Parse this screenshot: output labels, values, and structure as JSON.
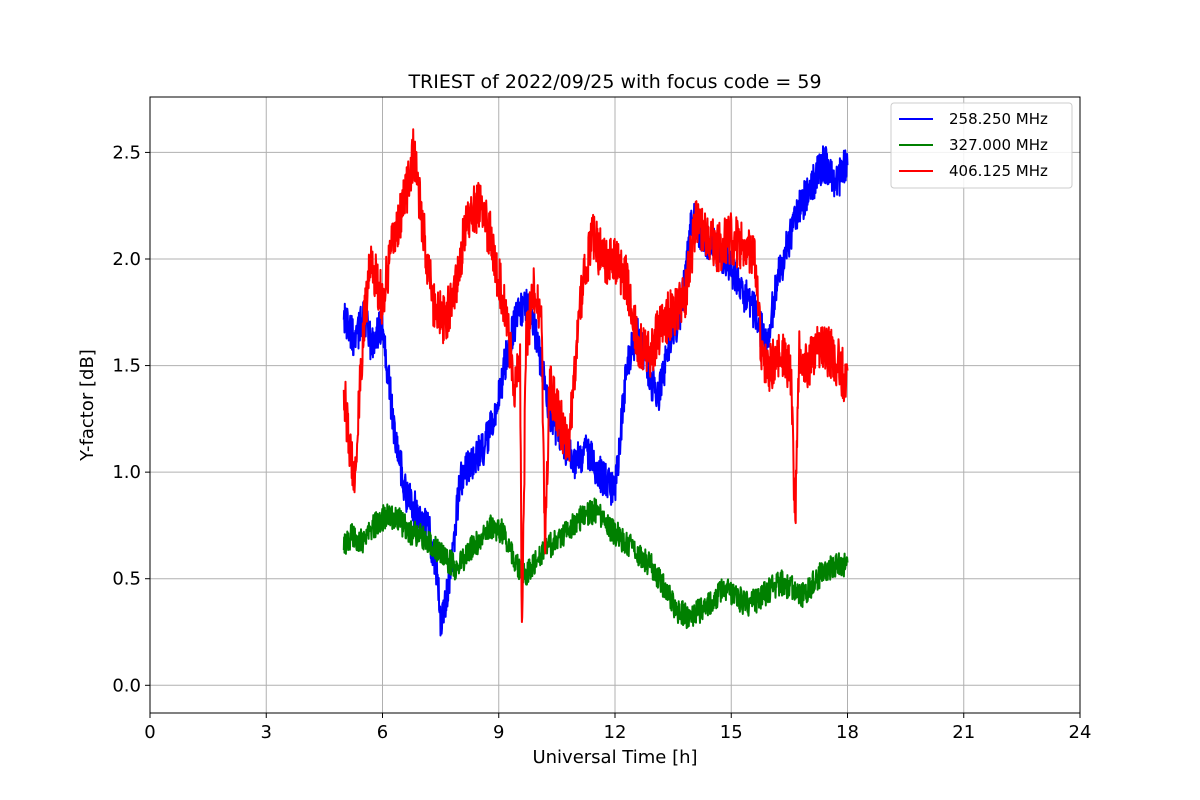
{
  "chart_data": {
    "type": "line",
    "title": "TRIEST of 2022/09/25 with focus code = 59",
    "xlabel": "Universal Time [h]",
    "ylabel": "Y-factor [dB]",
    "xlim": [
      0,
      24
    ],
    "ylim": [
      -0.13,
      2.76
    ],
    "xticks": [
      0,
      3,
      6,
      9,
      12,
      15,
      18,
      21,
      24
    ],
    "yticks": [
      0.0,
      0.5,
      1.0,
      1.5,
      2.0,
      2.5
    ],
    "ytick_labels": [
      "0.0",
      "0.5",
      "1.0",
      "1.5",
      "2.0",
      "2.5"
    ],
    "grid": true,
    "legend_position": "top-right",
    "series": [
      {
        "name": "258.250 MHz",
        "color": "#0000ff",
        "noise": 0.09,
        "x": [
          5.0,
          5.1,
          5.3,
          5.5,
          5.7,
          6.0,
          6.3,
          6.6,
          6.9,
          7.2,
          7.4,
          7.5,
          7.6,
          7.8,
          8.0,
          8.3,
          8.6,
          8.9,
          9.2,
          9.5,
          9.8,
          10.0,
          10.3,
          10.6,
          11.0,
          11.3,
          11.6,
          12.0,
          12.3,
          12.6,
          12.9,
          13.1,
          13.4,
          13.7,
          14.0,
          14.3,
          14.6,
          15.0,
          15.3,
          15.6,
          15.9,
          16.2,
          16.5,
          16.8,
          17.1,
          17.4,
          17.7,
          18.0
        ],
        "y": [
          1.75,
          1.7,
          1.6,
          1.75,
          1.6,
          1.7,
          1.2,
          0.9,
          0.8,
          0.72,
          0.55,
          0.3,
          0.35,
          0.6,
          0.95,
          1.05,
          1.1,
          1.25,
          1.55,
          1.75,
          1.8,
          1.6,
          1.3,
          1.15,
          1.05,
          1.1,
          1.0,
          0.9,
          1.5,
          1.65,
          1.45,
          1.35,
          1.6,
          1.75,
          2.2,
          2.1,
          2.05,
          1.95,
          1.85,
          1.75,
          1.6,
          1.9,
          2.1,
          2.25,
          2.35,
          2.45,
          2.35,
          2.45
        ]
      },
      {
        "name": "327.000 MHz",
        "color": "#008000",
        "noise": 0.06,
        "x": [
          5.0,
          5.2,
          5.5,
          5.8,
          6.1,
          6.4,
          6.7,
          7.0,
          7.3,
          7.6,
          7.9,
          8.2,
          8.5,
          8.8,
          9.1,
          9.4,
          9.6,
          9.8,
          10.0,
          10.3,
          10.6,
          10.9,
          11.2,
          11.5,
          11.8,
          12.1,
          12.4,
          12.7,
          13.0,
          13.3,
          13.6,
          13.9,
          14.2,
          14.5,
          14.8,
          15.1,
          15.4,
          15.7,
          16.0,
          16.3,
          16.6,
          16.9,
          17.2,
          17.5,
          17.8,
          18.0
        ],
        "y": [
          0.65,
          0.7,
          0.68,
          0.75,
          0.8,
          0.78,
          0.72,
          0.7,
          0.65,
          0.6,
          0.55,
          0.62,
          0.68,
          0.75,
          0.72,
          0.6,
          0.5,
          0.55,
          0.6,
          0.65,
          0.7,
          0.75,
          0.8,
          0.82,
          0.75,
          0.7,
          0.65,
          0.6,
          0.55,
          0.45,
          0.35,
          0.32,
          0.35,
          0.4,
          0.45,
          0.42,
          0.38,
          0.4,
          0.45,
          0.48,
          0.45,
          0.42,
          0.5,
          0.55,
          0.58,
          0.56
        ]
      },
      {
        "name": "406.125 MHz",
        "color": "#ff0000",
        "noise": 0.12,
        "x": [
          5.0,
          5.15,
          5.3,
          5.5,
          5.7,
          6.0,
          6.3,
          6.6,
          6.8,
          7.0,
          7.3,
          7.6,
          7.9,
          8.2,
          8.5,
          8.8,
          9.0,
          9.2,
          9.4,
          9.55,
          9.6,
          9.7,
          9.9,
          10.1,
          10.2,
          10.3,
          10.5,
          10.8,
          11.1,
          11.4,
          11.7,
          12.0,
          12.3,
          12.6,
          12.9,
          13.2,
          13.5,
          13.8,
          14.1,
          14.4,
          14.7,
          15.0,
          15.3,
          15.6,
          15.8,
          16.0,
          16.3,
          16.55,
          16.65,
          16.75,
          17.0,
          17.3,
          17.6,
          17.8,
          18.0
        ],
        "y": [
          1.4,
          1.1,
          1.0,
          1.65,
          2.0,
          1.8,
          2.1,
          2.3,
          2.5,
          2.2,
          1.8,
          1.7,
          1.9,
          2.2,
          2.25,
          2.1,
          1.9,
          1.75,
          1.4,
          1.5,
          0.2,
          1.6,
          1.85,
          1.7,
          0.6,
          1.4,
          1.3,
          1.1,
          1.8,
          2.1,
          2.0,
          2.0,
          1.9,
          1.6,
          1.55,
          1.7,
          1.75,
          1.8,
          2.2,
          2.1,
          2.05,
          2.1,
          2.05,
          2.0,
          1.5,
          1.5,
          1.55,
          1.45,
          0.75,
          1.55,
          1.5,
          1.6,
          1.55,
          1.5,
          1.4
        ]
      }
    ]
  }
}
